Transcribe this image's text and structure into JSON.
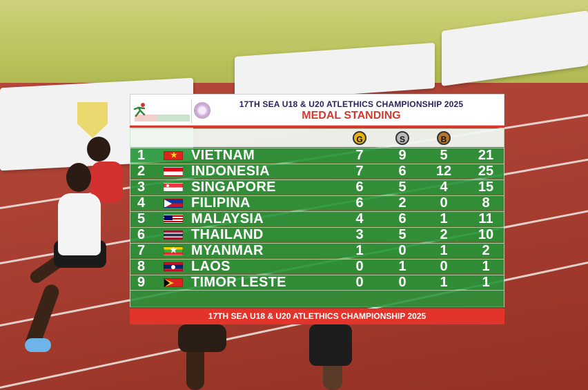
{
  "header": {
    "title": "17TH SEA U18 & U20 ATLETHICS CHAMPIONSHIP 2025",
    "subtitle": "MEDAL STANDING"
  },
  "medals": {
    "gold": "G",
    "silver": "S",
    "bronze": "B"
  },
  "standings": [
    {
      "rank": "1",
      "country": "VIETNAM",
      "flag": "vietnam-flag-icon",
      "gold": "7",
      "silver": "9",
      "bronze": "5",
      "total": "21"
    },
    {
      "rank": "2",
      "country": "INDONESIA",
      "flag": "indonesia-flag-icon",
      "gold": "7",
      "silver": "6",
      "bronze": "12",
      "total": "25"
    },
    {
      "rank": "3",
      "country": "SINGAPORE",
      "flag": "singapore-flag-icon",
      "gold": "6",
      "silver": "5",
      "bronze": "4",
      "total": "15"
    },
    {
      "rank": "4",
      "country": "FILIPINA",
      "flag": "philippines-flag-icon",
      "gold": "6",
      "silver": "2",
      "bronze": "0",
      "total": "8"
    },
    {
      "rank": "5",
      "country": "MALAYSIA",
      "flag": "malaysia-flag-icon",
      "gold": "4",
      "silver": "6",
      "bronze": "1",
      "total": "11"
    },
    {
      "rank": "6",
      "country": "THAILAND",
      "flag": "thailand-flag-icon",
      "gold": "3",
      "silver": "5",
      "bronze": "2",
      "total": "10"
    },
    {
      "rank": "7",
      "country": "MYANMAR",
      "flag": "myanmar-flag-icon",
      "gold": "1",
      "silver": "0",
      "bronze": "1",
      "total": "2"
    },
    {
      "rank": "8",
      "country": "LAOS",
      "flag": "laos-flag-icon",
      "gold": "0",
      "silver": "1",
      "bronze": "0",
      "total": "1"
    },
    {
      "rank": "9",
      "country": "TIMOR LESTE",
      "flag": "timor-leste-flag-icon",
      "gold": "0",
      "silver": "0",
      "bronze": "1",
      "total": "1"
    }
  ],
  "footer": {
    "text": "17TH SEA U18 & U20 ATLETHICS CHAMPIONSHIP 2025"
  },
  "colors": {
    "header_title": "#2a1f5a",
    "accent_red": "#d33a2e",
    "row_green": "#23963a",
    "gold": "#e7b418",
    "silver": "#b9b9b9",
    "bronze": "#b5782e"
  }
}
